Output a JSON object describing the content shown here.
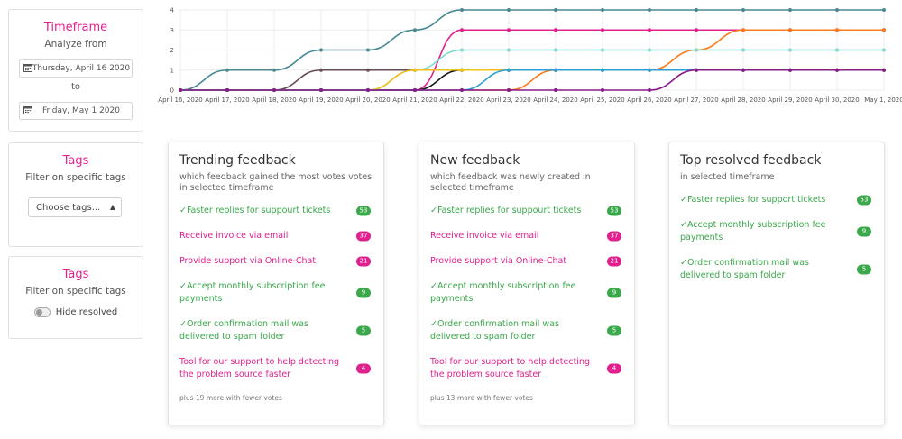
{
  "timeframe_panel": {
    "title": "Timeframe",
    "subtitle": "Analyze from",
    "from_date": "Thursday, April 16 2020",
    "to_label": "to",
    "to_date": "Friday, May 1 2020"
  },
  "tags_panel": {
    "title": "Tags",
    "subtitle": "Filter on specific tags",
    "select_value": "Choose tags..."
  },
  "resolved_panel": {
    "title": "Tags",
    "subtitle": "Filter on specific tags",
    "toggle_label": "Hide resolved"
  },
  "colors": {
    "accent": "#e0208f",
    "resolved": "#3aa84b"
  },
  "chart_data": {
    "type": "line",
    "categories": [
      "April 16, 2020",
      "April 17, 2020",
      "April 18, 2020",
      "April 19, 2020",
      "April 20, 2020",
      "April 21, 2020",
      "April 22, 2020",
      "April 23, 2020",
      "April 24, 2020",
      "April 25, 2020",
      "April 26, 2020",
      "April 27, 2020",
      "April 28, 2020",
      "April 29, 2020",
      "April 30, 2020",
      "May 1, 2020"
    ],
    "y_ticks": [
      "0",
      "1",
      "2",
      "3",
      "4"
    ],
    "ylim": [
      0,
      4
    ],
    "grid": true,
    "series": [
      {
        "color": "#4a8a94",
        "values": [
          0,
          1,
          1,
          2,
          2,
          3,
          4,
          4,
          4,
          4,
          4,
          4,
          4,
          4,
          4,
          4
        ]
      },
      {
        "color": "#e0208f",
        "values": [
          0,
          0,
          0,
          0,
          0,
          0,
          3,
          3,
          3,
          3,
          3,
          3,
          3,
          3,
          3,
          3
        ]
      },
      {
        "color": "#ff7a1a",
        "values": [
          0,
          0,
          0,
          0,
          0,
          0,
          0,
          0,
          1,
          1,
          1,
          2,
          3,
          3,
          3,
          3
        ]
      },
      {
        "color": "#7ddbd0",
        "values": [
          0,
          0,
          0,
          0,
          0,
          1,
          2,
          2,
          2,
          2,
          2,
          2,
          2,
          2,
          2,
          2
        ]
      },
      {
        "color": "#6b4a5a",
        "values": [
          0,
          0,
          0,
          1,
          1,
          1,
          1,
          1,
          1,
          1,
          1,
          1,
          1,
          1,
          1,
          1
        ]
      },
      {
        "color": "#1a1a1a",
        "values": [
          0,
          0,
          0,
          0,
          0,
          0,
          1,
          1,
          1,
          1,
          1,
          1,
          1,
          1,
          1,
          1
        ]
      },
      {
        "color": "#f2c01a",
        "values": [
          0,
          0,
          0,
          0,
          0,
          1,
          1,
          1,
          1,
          1,
          1,
          1,
          1,
          1,
          1,
          1
        ]
      },
      {
        "color": "#2f9fd6",
        "values": [
          0,
          0,
          0,
          0,
          0,
          0,
          0,
          1,
          1,
          1,
          1,
          1,
          1,
          1,
          1,
          1
        ]
      },
      {
        "color": "#8a1a8a",
        "values": [
          0,
          0,
          0,
          0,
          0,
          0,
          0,
          0,
          0,
          0,
          0,
          1,
          1,
          1,
          1,
          1
        ]
      }
    ]
  },
  "trending": {
    "title": "Trending feedback",
    "subtitle": "which feedback gained the most votes votes in selected timeframe",
    "items": [
      {
        "label": "Faster replies for suppourt tickets",
        "count": "53",
        "status": "resolved"
      },
      {
        "label": "Receive invoice via email",
        "count": "37",
        "status": "open"
      },
      {
        "label": "Provide support via Online-Chat",
        "count": "21",
        "status": "open"
      },
      {
        "label": "Accept monthly subscription fee payments",
        "count": "9",
        "status": "resolved"
      },
      {
        "label": "Order confirmation mail was delivered to spam folder",
        "count": "5",
        "status": "resolved"
      },
      {
        "label": "Tool for our support to help detecting the problem source faster",
        "count": "4",
        "status": "open"
      }
    ],
    "more": "plus 19 more with fewer votes"
  },
  "new_feedback": {
    "title": "New feedback",
    "subtitle": "which feedback was newly created in selected timeframe",
    "items": [
      {
        "label": "Faster replies for suppourt tickets",
        "count": "53",
        "status": "resolved"
      },
      {
        "label": "Receive invoice via email",
        "count": "37",
        "status": "open"
      },
      {
        "label": "Provide support via Online-Chat",
        "count": "21",
        "status": "open"
      },
      {
        "label": "Accept monthly subscription fee payments",
        "count": "9",
        "status": "resolved"
      },
      {
        "label": "Order confirmation mail was delivered to spam folder",
        "count": "5",
        "status": "resolved"
      },
      {
        "label": "Tool for our support to help detecting the problem source faster",
        "count": "4",
        "status": "open"
      }
    ],
    "more": "plus 13 more with fewer votes"
  },
  "top_resolved": {
    "title": "Top resolved feedback",
    "subtitle": "in selected timeframe",
    "items": [
      {
        "label": "Faster replies for support tickets",
        "count": "53",
        "status": "resolved"
      },
      {
        "label": "Accept monthly subscription fee payments",
        "count": "9",
        "status": "resolved"
      },
      {
        "label": "Order confirmation mail was delivered to spam folder",
        "count": "5",
        "status": "resolved"
      }
    ]
  }
}
